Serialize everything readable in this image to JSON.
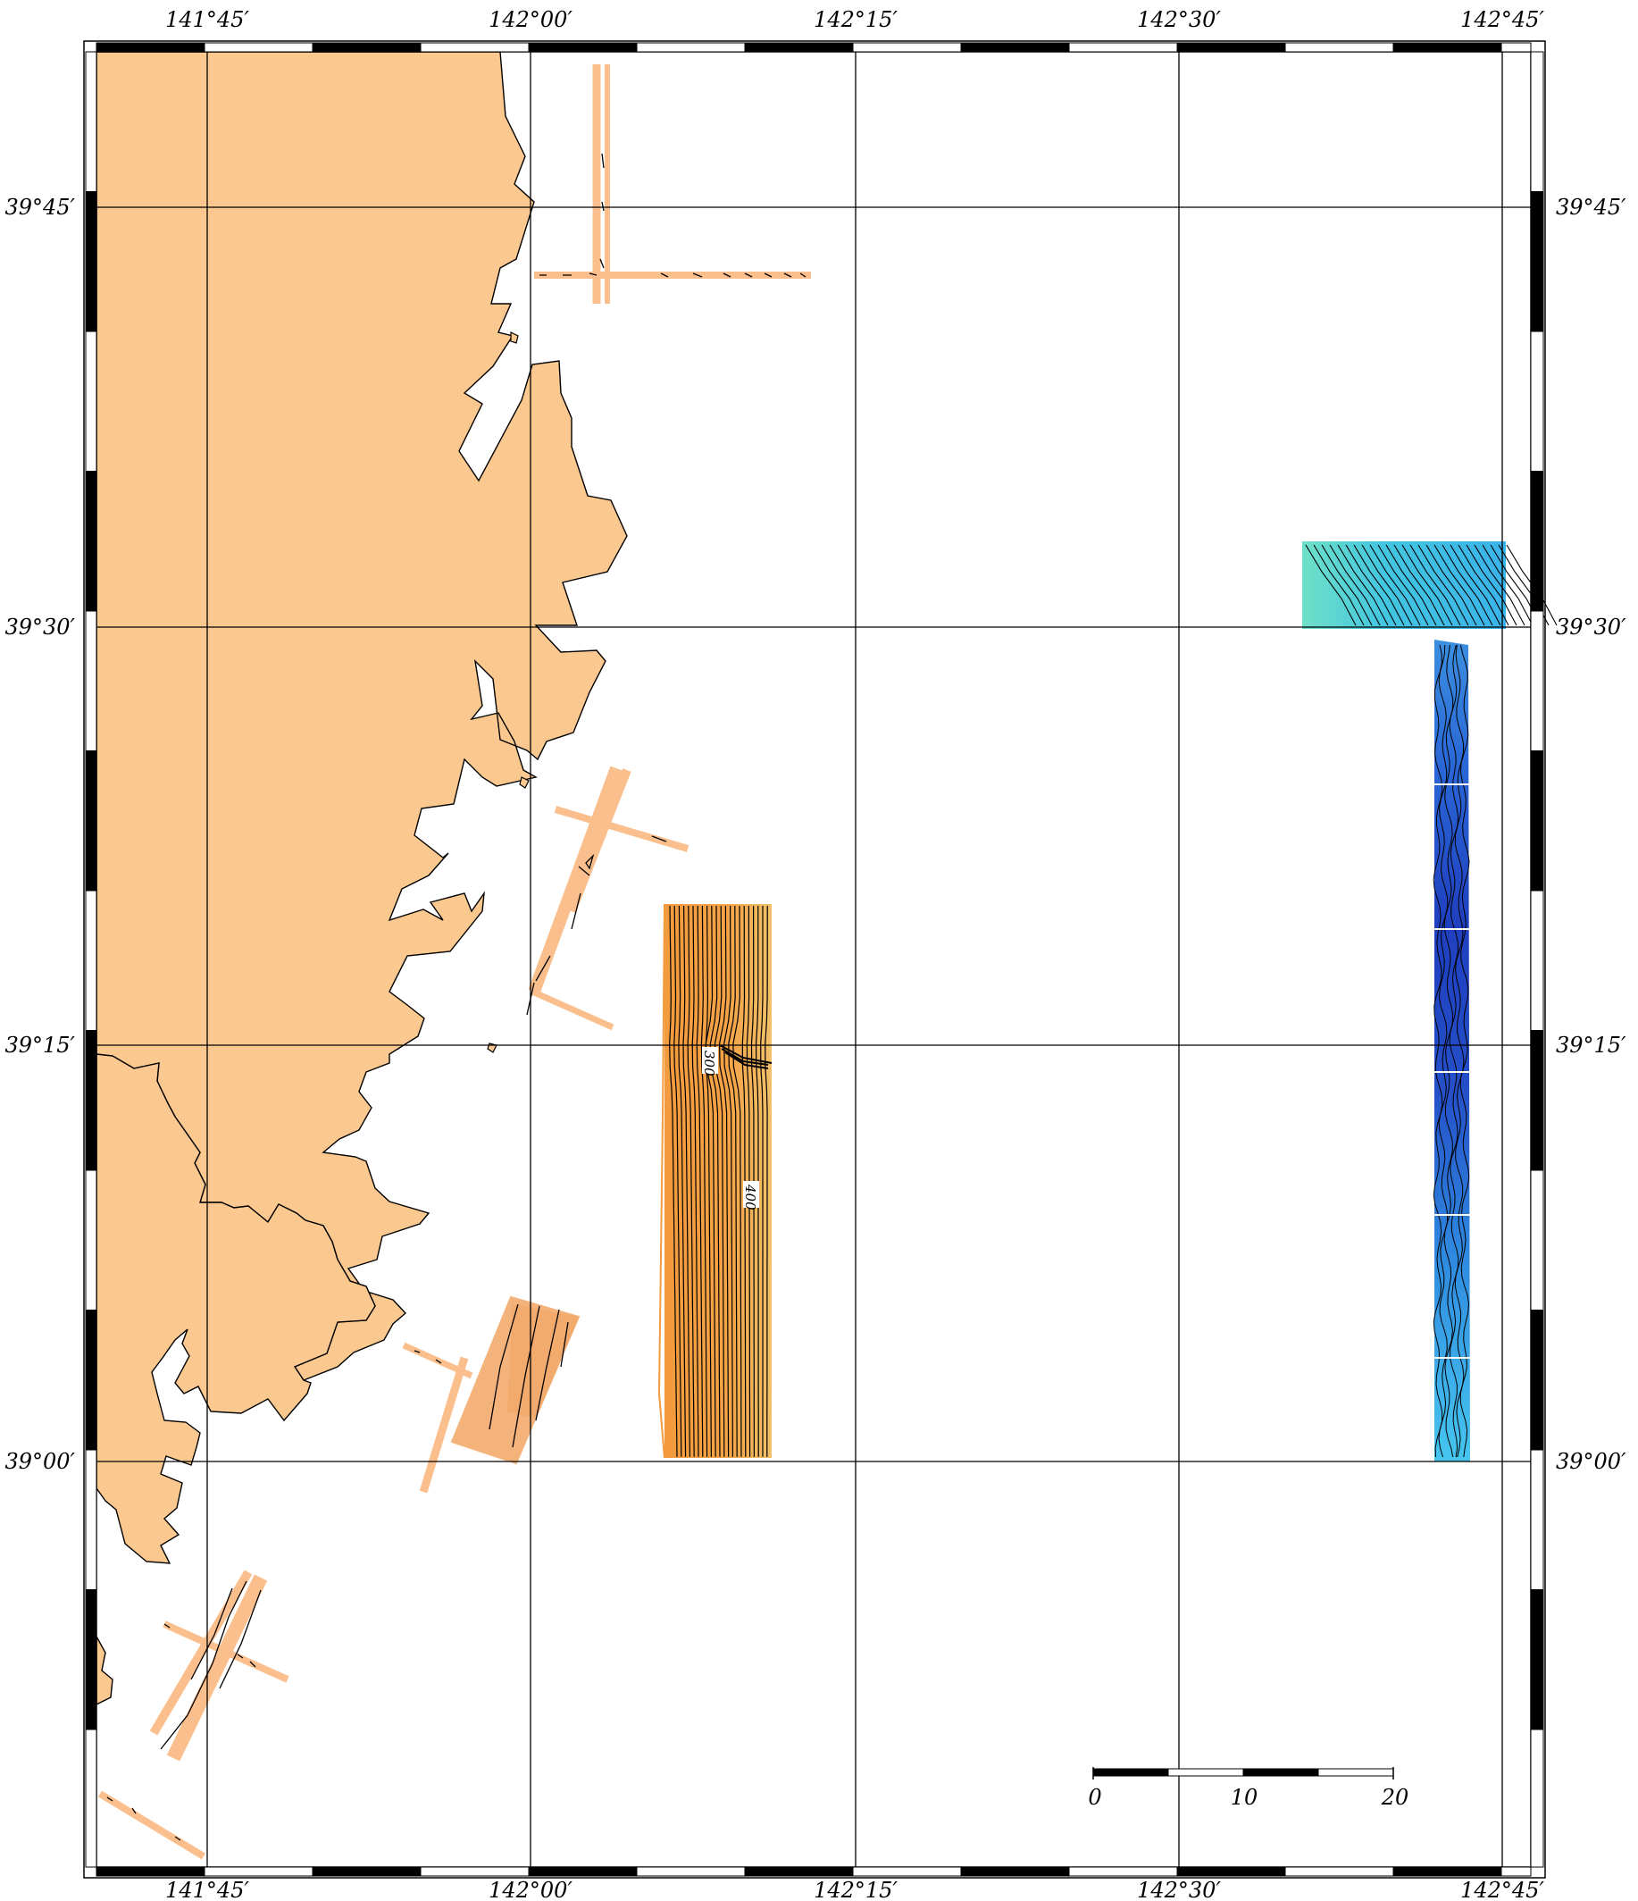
{
  "map": {
    "longitude_labels": [
      "141°45′",
      "142°00′",
      "142°15′",
      "142°30′",
      "142°45′"
    ],
    "latitude_labels": [
      "39°45′",
      "39°30′",
      "39°15′",
      "39°00′"
    ],
    "contour_labels": [
      "300",
      "400"
    ],
    "scale_bar": {
      "labels": [
        "0",
        "10",
        "20"
      ]
    },
    "colors": {
      "land": "#fbc98f",
      "shallow_survey": "#f5a244",
      "track_lines": "#fbbf8d",
      "deep_teal": "#3ec8e6",
      "deep_blue": "#2a5fd0",
      "frame": "#000000"
    }
  }
}
